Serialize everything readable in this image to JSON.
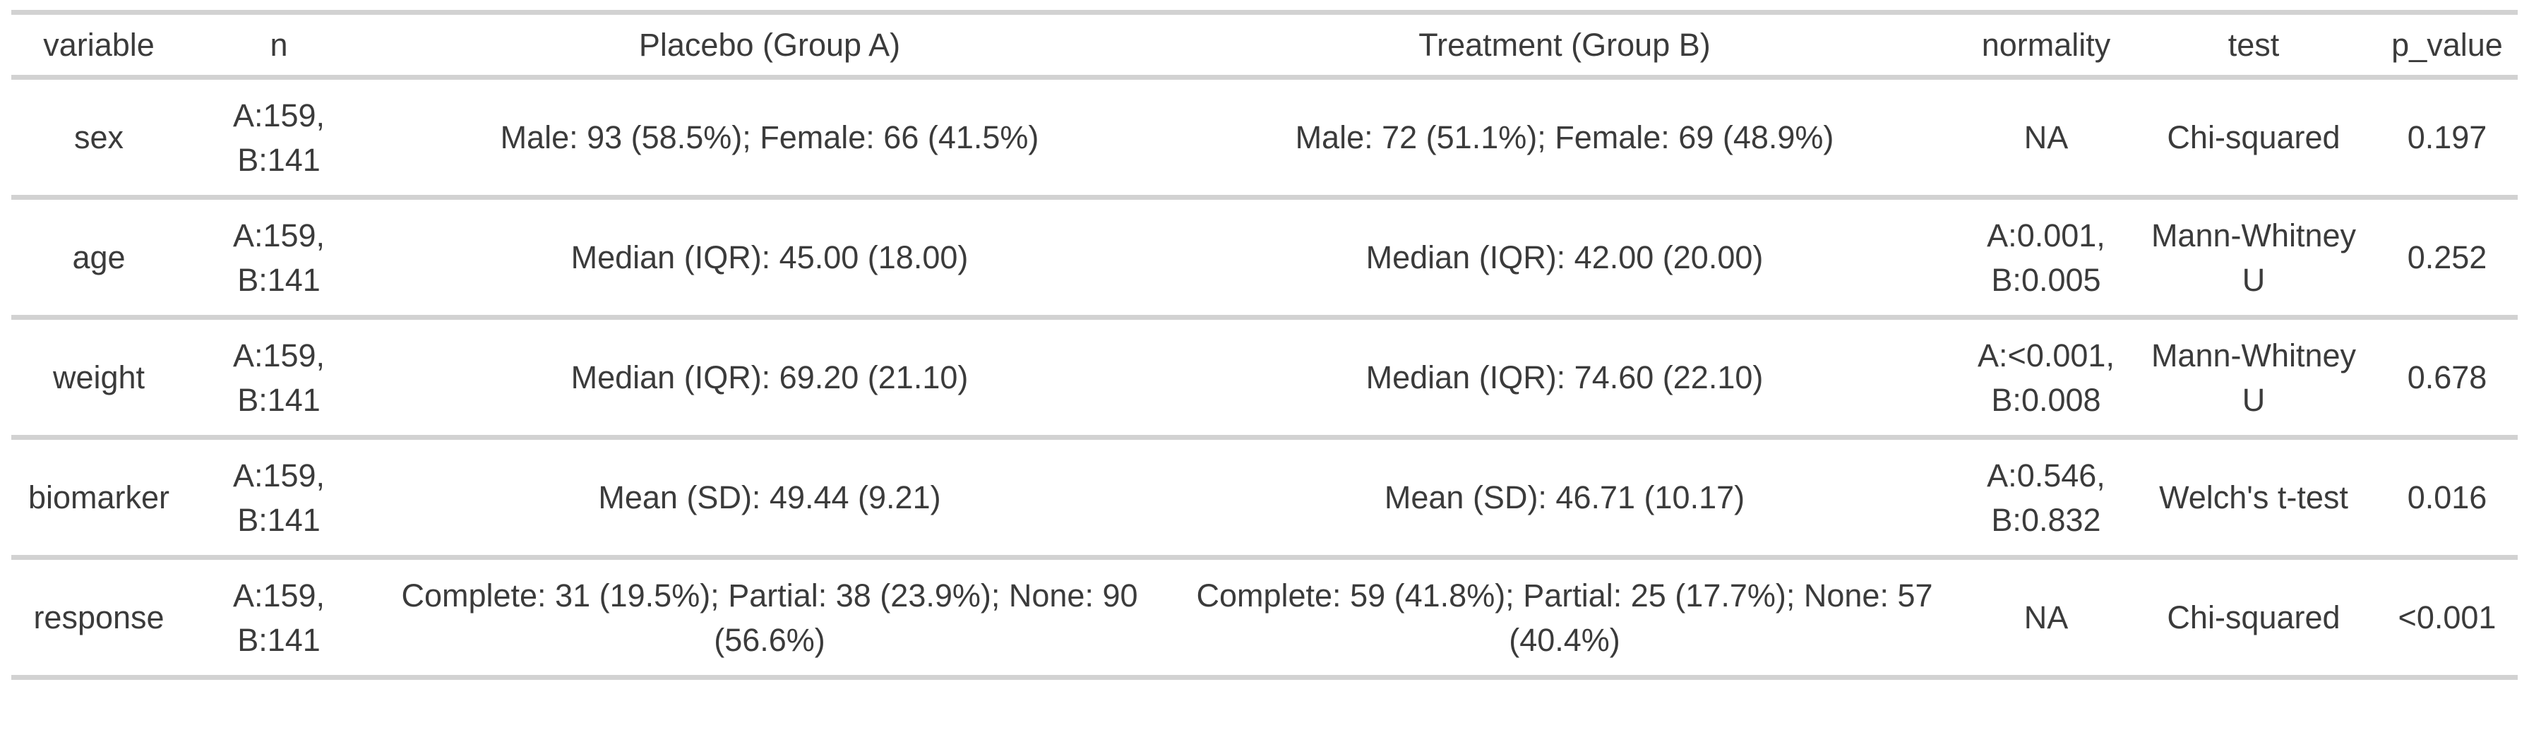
{
  "table": {
    "columns": [
      {
        "id": "variable",
        "label": "variable"
      },
      {
        "id": "n",
        "label": "n"
      },
      {
        "id": "placebo",
        "label": "Placebo (Group A)"
      },
      {
        "id": "treatment",
        "label": "Treatment (Group B)"
      },
      {
        "id": "normality",
        "label": "normality"
      },
      {
        "id": "test",
        "label": "test"
      },
      {
        "id": "p_value",
        "label": "p_value"
      }
    ],
    "rows": [
      {
        "variable": "sex",
        "n": "A:159,\nB:141",
        "placebo": "Male: 93 (58.5%); Female: 66 (41.5%)",
        "treatment": "Male: 72 (51.1%); Female: 69 (48.9%)",
        "normality": "NA",
        "test": "Chi-squared",
        "p_value": "0.197"
      },
      {
        "variable": "age",
        "n": "A:159,\nB:141",
        "placebo": "Median (IQR): 45.00 (18.00)",
        "treatment": "Median (IQR): 42.00 (20.00)",
        "normality": "A:0.001,\nB:0.005",
        "test": "Mann-Whitney\nU",
        "p_value": "0.252"
      },
      {
        "variable": "weight",
        "n": "A:159,\nB:141",
        "placebo": "Median (IQR): 69.20 (21.10)",
        "treatment": "Median (IQR): 74.60 (22.10)",
        "normality": "A:<0.001,\nB:0.008",
        "test": "Mann-Whitney\nU",
        "p_value": "0.678"
      },
      {
        "variable": "biomarker",
        "n": "A:159,\nB:141",
        "placebo": "Mean (SD): 49.44 (9.21)",
        "treatment": "Mean (SD): 46.71 (10.17)",
        "normality": "A:0.546,\nB:0.832",
        "test": "Welch's t-test",
        "p_value": "0.016"
      },
      {
        "variable": "response",
        "n": "A:159,\nB:141",
        "placebo": "Complete: 31 (19.5%); Partial: 38 (23.9%); None: 90\n(56.6%)",
        "treatment": "Complete: 59 (41.8%); Partial: 25 (17.7%); None: 57\n(40.4%)",
        "normality": "NA",
        "test": "Chi-squared",
        "p_value": "<0.001"
      }
    ]
  },
  "colors": {
    "text": "#3b3b3b",
    "separator": "#d2d2d2",
    "background": "#ffffff"
  }
}
